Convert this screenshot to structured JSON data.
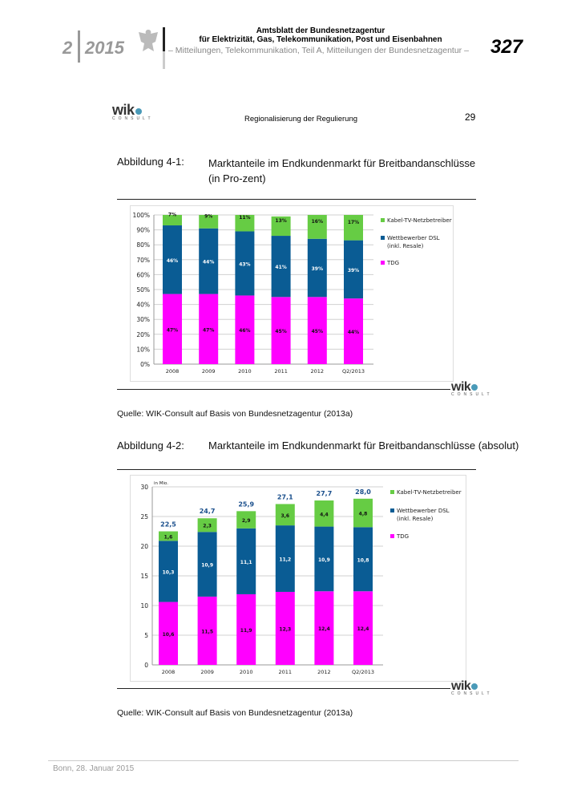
{
  "header": {
    "issue": "2",
    "year": "2015",
    "title1": "Amtsblatt der Bundesnetzagentur",
    "title2": "für Elektrizität, Gas, Telekommunikation, Post und Eisenbahnen",
    "subtitle": "– Mitteilungen, Telekommunikation, Teil A, Mitteilungen der Bundesnetzagentur –",
    "page": "327"
  },
  "inner_header": {
    "logo": "wik",
    "logo_sub": "CONSULT",
    "title": "Regionalisierung  der Regulierung",
    "page": "29"
  },
  "fig1": {
    "label": "Abbildung 4-1:",
    "title": "Marktanteile im Endkundenmarkt für Breitbandanschlüsse (in Pro-zent)",
    "source": "Quelle: WIK-Consult auf Basis von Bundesnetzagentur (2013a)"
  },
  "fig2": {
    "label": "Abbildung 4-2:",
    "title": "Marktanteile im Endkundenmarkt für Breitbandanschlüsse (absolut)",
    "source": "Quelle: WIK-Consult auf Basis von Bundesnetzagentur (2013a)"
  },
  "footer": {
    "text": "Bonn, 28. Januar 2015"
  },
  "colors": {
    "cable": "#66cc44",
    "dsl": "#0a5c94",
    "tdg": "#ff00ff",
    "total": "#1a4f8c"
  },
  "chart_data": [
    {
      "type": "bar",
      "stacked": true,
      "title": "",
      "ylabel": "",
      "ylim": [
        0,
        100
      ],
      "yticks": [
        "0%",
        "10%",
        "20%",
        "30%",
        "40%",
        "50%",
        "60%",
        "70%",
        "80%",
        "90%",
        "100%"
      ],
      "categories": [
        "2008",
        "2009",
        "2010",
        "2011",
        "2012",
        "Q2/2013"
      ],
      "series": [
        {
          "name": "TDG",
          "values": [
            47,
            47,
            46,
            45,
            45,
            44
          ],
          "labels": [
            "47%",
            "47%",
            "46%",
            "45%",
            "45%",
            "44%"
          ]
        },
        {
          "name": "Wettbewerber DSL (inkl. Resale)",
          "values": [
            46,
            44,
            43,
            41,
            39,
            39
          ],
          "labels": [
            "46%",
            "44%",
            "43%",
            "41%",
            "39%",
            "39%"
          ]
        },
        {
          "name": "Kabel-TV-Netzbetreiber",
          "values": [
            7,
            9,
            11,
            13,
            16,
            17
          ],
          "labels": [
            "7%",
            "9%",
            "11%",
            "13%",
            "16%",
            "17%"
          ]
        }
      ],
      "legend": [
        "Kabel-TV-Netzbetreiber",
        "Wettbewerber DSL",
        "(inkl. Resale)",
        "TDG"
      ],
      "legend_position": "right"
    },
    {
      "type": "bar",
      "stacked": true,
      "title": "",
      "ylabel": "in Mio.",
      "ylim": [
        0,
        30
      ],
      "yticks": [
        "0",
        "5",
        "10",
        "15",
        "20",
        "25",
        "30"
      ],
      "categories": [
        "2008",
        "2009",
        "2010",
        "2011",
        "2012",
        "Q2/2013"
      ],
      "series": [
        {
          "name": "TDG",
          "values": [
            10.6,
            11.5,
            11.9,
            12.3,
            12.4,
            12.4
          ],
          "labels": [
            "10,6",
            "11,5",
            "11,9",
            "12,3",
            "12,4",
            "12,4"
          ]
        },
        {
          "name": "Wettbewerber DSL (inkl. Resale)",
          "values": [
            10.3,
            10.9,
            11.1,
            11.2,
            10.9,
            10.8
          ],
          "labels": [
            "10,3",
            "10,9",
            "11,1",
            "11,2",
            "10,9",
            "10,8"
          ]
        },
        {
          "name": "Kabel-TV-Netzbetreiber",
          "values": [
            1.6,
            2.3,
            2.9,
            3.6,
            4.4,
            4.8
          ],
          "labels": [
            "1,6",
            "2,3",
            "2,9",
            "3,6",
            "4,4",
            "4,8"
          ]
        }
      ],
      "totals": [
        "22,5",
        "24,7",
        "25,9",
        "27,1",
        "27,7",
        "28,0"
      ],
      "legend": [
        "Kabel-TV-Netzbetreiber",
        "Wettbewerber DSL",
        "(inkl. Resale)",
        "TDG"
      ],
      "legend_position": "right"
    }
  ]
}
